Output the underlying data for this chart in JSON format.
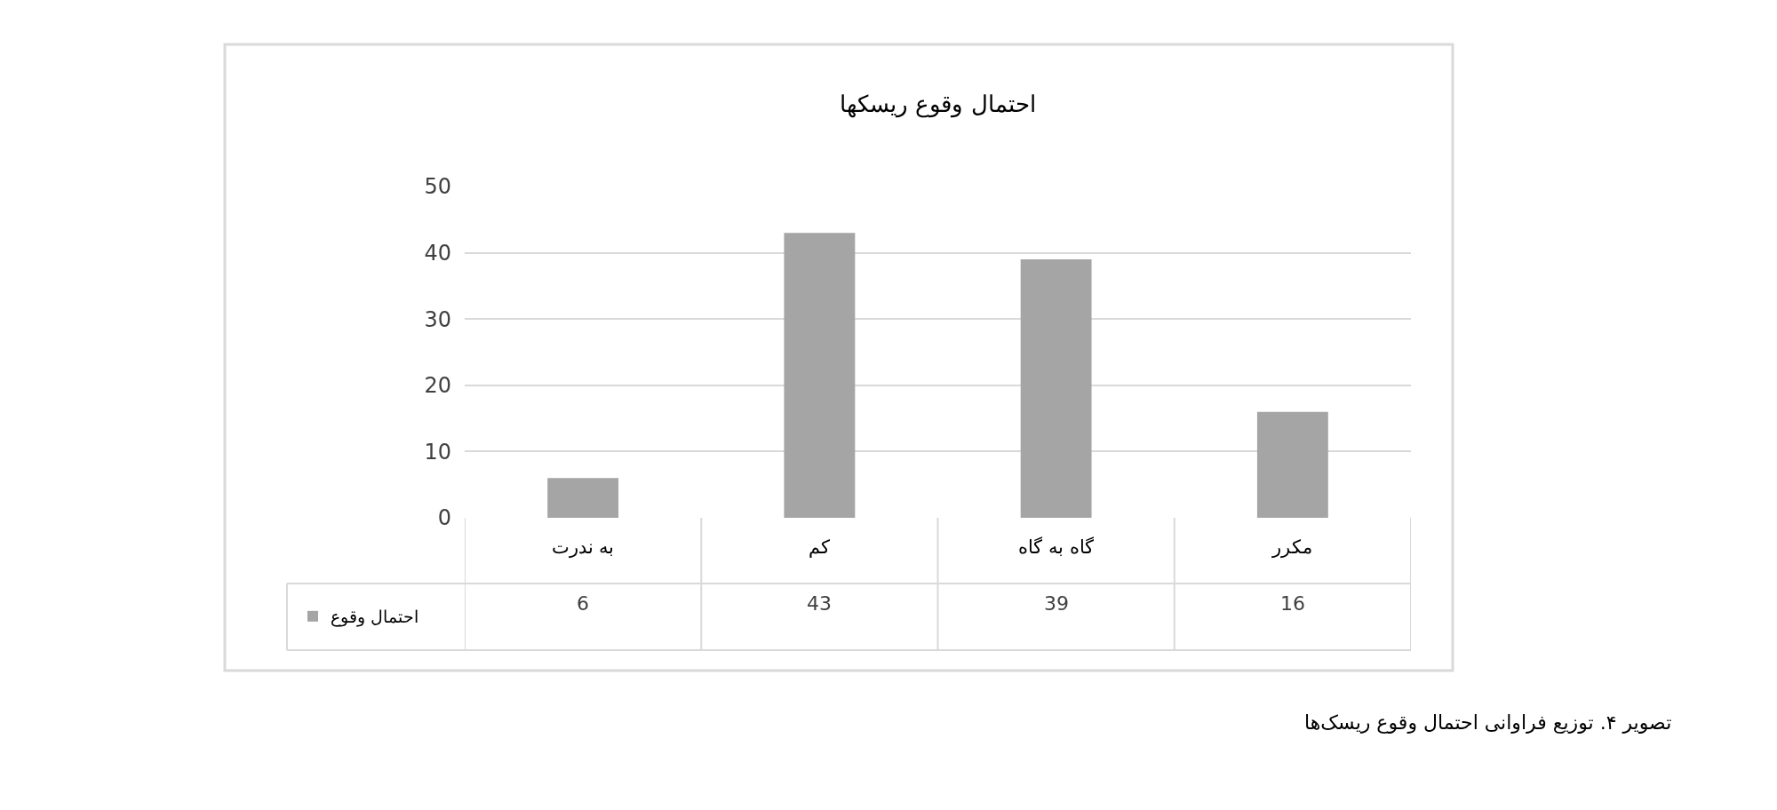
{
  "chart_data": {
    "type": "bar",
    "title": "احتمال وقوع ریسکها",
    "categories": [
      "به ندرت",
      "کم",
      "گاه به گاه",
      "مکرر"
    ],
    "series": [
      {
        "name": "احتمال وقوع",
        "color": "#a5a5a5",
        "values": [
          6,
          43,
          39,
          16
        ]
      }
    ],
    "ylim": [
      0,
      50
    ],
    "yticks": [
      0,
      10,
      20,
      30,
      40,
      50
    ],
    "grid": "y",
    "legend": "bottom left",
    "data_labels": true,
    "annotations": [
      "تصویر ۴. توزیع فراوانی احتمال وقوع ریسک‌ها"
    ]
  }
}
